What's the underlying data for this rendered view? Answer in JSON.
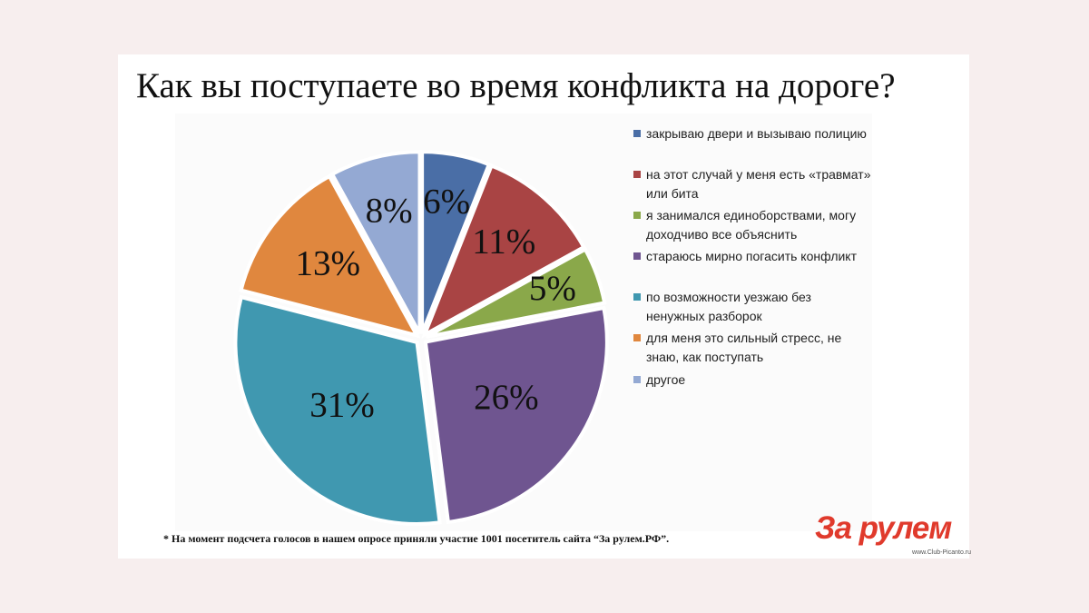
{
  "chart_data": {
    "type": "pie",
    "title": "Как вы поступаете во время конфликта на дороге?",
    "slices": [
      {
        "label": "закрываю двери и вызываю полицию",
        "value": 6,
        "display": "6%",
        "color": "#4a6ea6"
      },
      {
        "label": " на этот случай у меня есть «травмат» или бита",
        "value": 11,
        "display": "11%",
        "color": "#a94444"
      },
      {
        "label": "я занимался единоборствами, могу доходчиво все объяснить",
        "value": 5,
        "display": "5%",
        "color": "#8aa84a"
      },
      {
        "label": "стараюсь мирно погасить конфликт",
        "value": 26,
        "display": "26%",
        "color": "#6f5590"
      },
      {
        "label": "по возможности уезжаю без ненужных разборок",
        "value": 31,
        "display": "31%",
        "color": "#4098b0"
      },
      {
        "label": "для меня это сильный стресс, не знаю, как поступать",
        "value": 13,
        "display": "13%",
        "color": "#e0873e"
      },
      {
        "label": "другое",
        "value": 8,
        "display": "8%",
        "color": "#94a9d3"
      }
    ],
    "legend_position": "right"
  },
  "legend_lines": [
    "закрываю двери и вызываю полицию",
    " на этот случай у меня есть «травмат»\nили бита",
    "я занимался единоборствами, могу\nдоходчиво все объяснить",
    "стараюсь мирно погасить конфликт",
    "по возможности уезжаю без\nненужных разборок",
    "для меня это сильный стресс, не\nзнаю, как поступать",
    "другое"
  ],
  "footnote": "* На момент подсчета голосов в нашем опросе приняли участие 1001 посетитель сайта “За рулем.РФ”.",
  "logo_text": "За рулем",
  "watermark": "www.Club-Picanto.ru"
}
